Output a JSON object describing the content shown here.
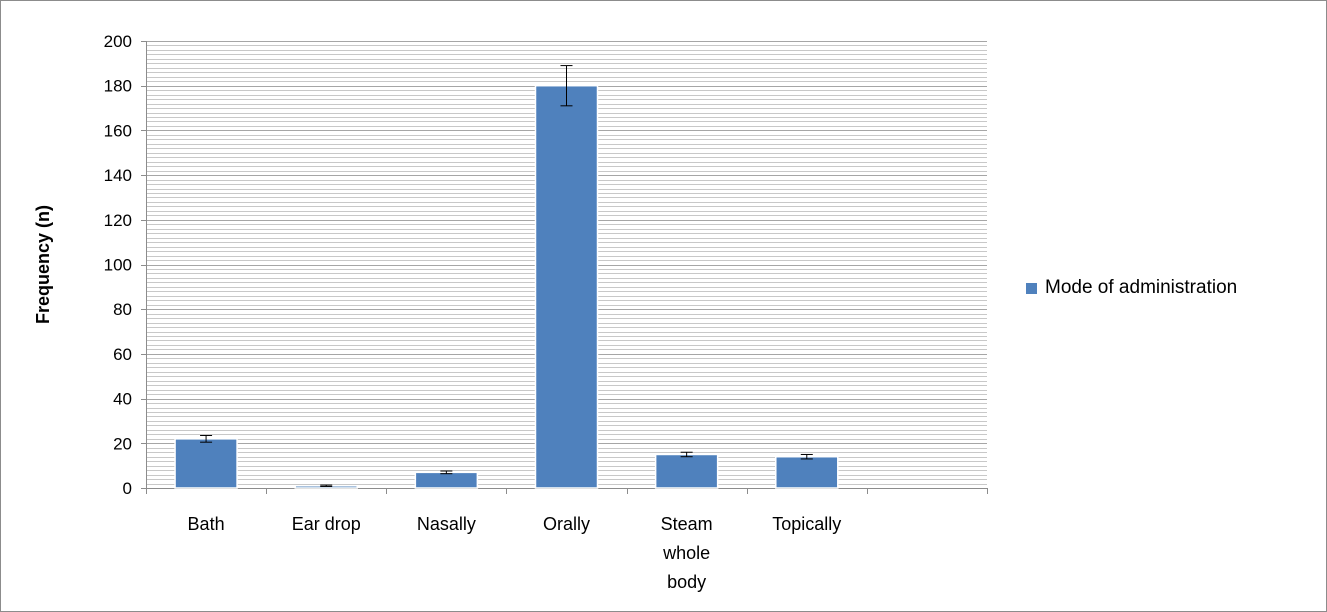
{
  "chart_data": {
    "type": "bar",
    "categories": [
      "Bath",
      "Ear drop",
      "Nasally",
      "Orally",
      "Steam whole body",
      "Topically",
      ""
    ],
    "category_label_lines": [
      [
        "Bath"
      ],
      [
        "Ear drop"
      ],
      [
        "Nasally"
      ],
      [
        "Orally"
      ],
      [
        "Steam",
        "whole",
        "body"
      ],
      [
        "Topically"
      ],
      []
    ],
    "series": [
      {
        "name": "Mode of administration",
        "values": [
          22,
          1,
          7,
          180,
          15,
          14,
          null
        ],
        "error": [
          1.5,
          0.3,
          0.6,
          9,
          1,
          1,
          null
        ]
      }
    ],
    "title": "",
    "xlabel": "",
    "ylabel": "Frequency (n)",
    "ylim": [
      0,
      200
    ],
    "yticks": [
      0,
      20,
      40,
      60,
      80,
      100,
      120,
      140,
      160,
      180,
      200
    ],
    "minor_grid_step": 2,
    "grid": true,
    "legend_position": "right",
    "colors": {
      "bar_fill": "#4f81bd",
      "bar_edge": "#ffffff",
      "grid_major": "#a6a6a6",
      "grid_minor": "#c8c8c8",
      "axis": "#8c8c8c",
      "error_bar": "#000000"
    }
  }
}
